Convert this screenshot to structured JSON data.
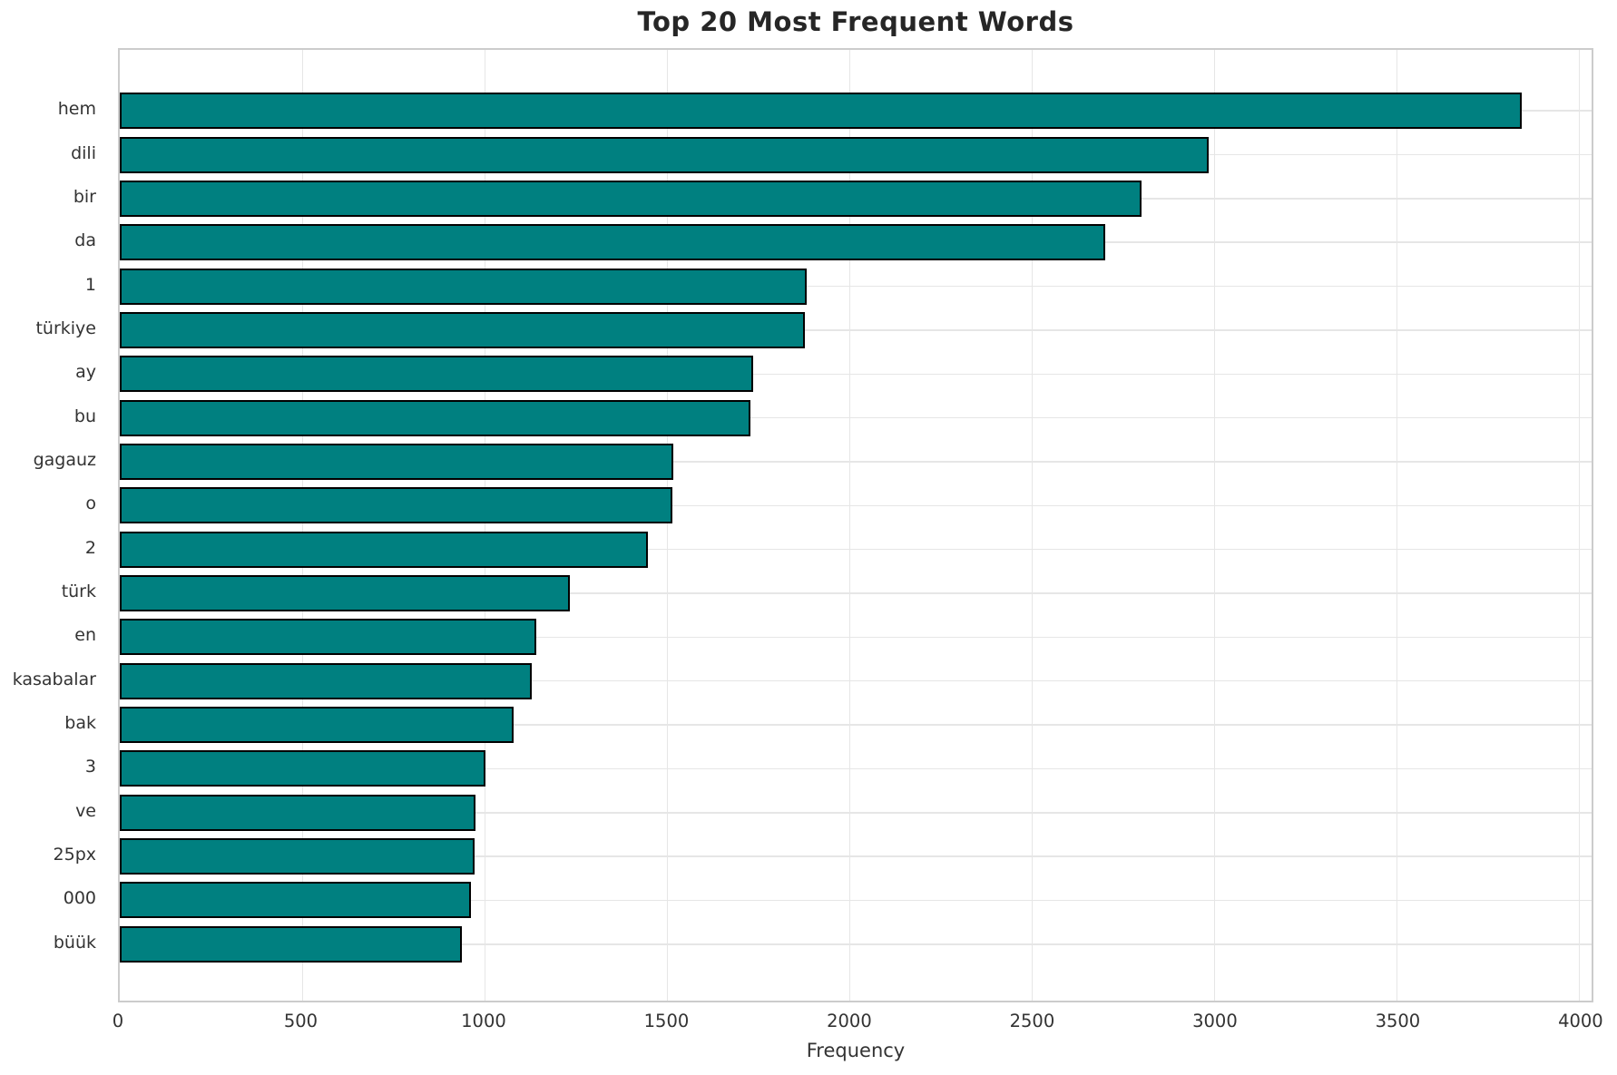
{
  "chart_data": {
    "type": "bar",
    "orientation": "horizontal",
    "title": "Top 20 Most Frequent Words",
    "xlabel": "Frequency",
    "ylabel": "",
    "categories": [
      "hem",
      "dili",
      "bir",
      "da",
      "1",
      "türkiye",
      "ay",
      "bu",
      "gagauz",
      "o",
      "2",
      "türk",
      "en",
      "kasabalar",
      "bak",
      "3",
      "ve",
      "25px",
      "000",
      "büük"
    ],
    "values": [
      3843,
      2984,
      2801,
      2702,
      1882,
      1879,
      1736,
      1730,
      1518,
      1514,
      1447,
      1235,
      1142,
      1130,
      1080,
      1003,
      974,
      972,
      962,
      937
    ],
    "xticks": [
      0,
      500,
      1000,
      1500,
      2000,
      2500,
      3000,
      3500,
      4000
    ],
    "xlim": [
      0,
      4035
    ],
    "grid": "on",
    "legend": "none",
    "colors": {
      "bar_fill": "#008080",
      "bar_edge": "#000000",
      "gridline": "#e6e6e6",
      "spine": "#cccccc",
      "tick_text": "#333333",
      "title_text": "#262626"
    }
  }
}
